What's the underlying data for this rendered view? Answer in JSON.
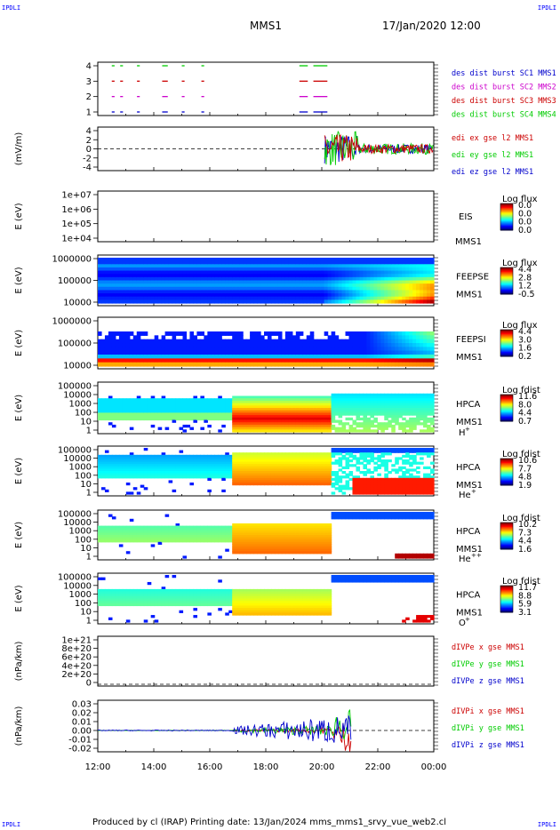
{
  "corners": {
    "tl": "IPDLI",
    "tr": "IPDLI",
    "bl": "IPDLI",
    "br": "IPDLI"
  },
  "header": {
    "mission": "MMS1",
    "datetime": "17/Jan/2020 12:00"
  },
  "footer": {
    "text": "Produced by cl (IRAP)   Printing date: 13/Jan/2024   mms_mms1_srvy_vue_web2.cl"
  },
  "time_axis": {
    "ticks": [
      "12:00",
      "14:00",
      "16:00",
      "18:00",
      "20:00",
      "22:00",
      "00:00"
    ]
  },
  "chart_data": [
    {
      "type": "scatter",
      "panel": "burst-availability",
      "ylim": [
        0.5,
        4.5
      ],
      "yticks": [
        "1",
        "2",
        "3",
        "4"
      ],
      "legend": [
        {
          "text": "des dist burst SC1 MMS1",
          "color": "#0000cc"
        },
        {
          "text": "des dist burst SC2 MMS2",
          "color": "#cc00cc"
        },
        {
          "text": "des dist burst SC3 MMS3",
          "color": "#cc0000"
        },
        {
          "text": "des dist burst SC4 MMS4",
          "color": "#00cc00"
        }
      ],
      "intervals_hours": [
        [
          12.5,
          12.6
        ],
        [
          12.8,
          12.9
        ],
        [
          13.4,
          13.5
        ],
        [
          14.3,
          14.5
        ],
        [
          15.0,
          15.1
        ],
        [
          15.7,
          15.8
        ],
        [
          19.2,
          19.5
        ],
        [
          19.7,
          20.2
        ]
      ]
    },
    {
      "type": "line",
      "panel": "edi-efield",
      "ylabel": "(mV/m)",
      "ylim": [
        -5,
        5
      ],
      "yticks": [
        "4",
        "2",
        "0",
        "-2",
        "-4"
      ],
      "legend": [
        {
          "text": "edi ex gse l2 MMS1",
          "color": "#cc0000"
        },
        {
          "text": "edi ey gse l2 MMS1",
          "color": "#00cc00"
        },
        {
          "text": "edi ez gse l2 MMS1",
          "color": "#0000cc"
        }
      ]
    },
    {
      "type": "heatmap",
      "panel": "eis",
      "ylabel": "E (eV)",
      "scale": "log",
      "yticks": [
        "1e+07",
        "1e+06",
        "1e+05",
        "1e+04"
      ],
      "labels": [
        "EIS",
        "MMS1"
      ],
      "overlay": "extof_proton tof",
      "colorbar": {
        "title": "Log flux",
        "ticks": [
          "0.0",
          "0.0",
          "0.0",
          "0.0"
        ]
      }
    },
    {
      "type": "heatmap",
      "panel": "feeps-electron",
      "ylabel": "E (eV)",
      "scale": "log",
      "yticks": [
        "1000000",
        "100000",
        "10000"
      ],
      "labels": [
        "FEEPSE",
        "MMS1"
      ],
      "colorbar": {
        "title": "Log flux",
        "ticks": [
          "4.4",
          "2.8",
          "1.2",
          "-0.5"
        ]
      }
    },
    {
      "type": "heatmap",
      "panel": "feeps-ion",
      "ylabel": "E (eV)",
      "scale": "log",
      "yticks": [
        "1000000",
        "100000",
        "10000"
      ],
      "labels": [
        "FEEPSI",
        "MMS1"
      ],
      "colorbar": {
        "title": "Log flux",
        "ticks": [
          "4.4",
          "3.0",
          "1.6",
          "0.2"
        ]
      }
    },
    {
      "type": "heatmap",
      "panel": "hpca-h",
      "ylabel": "E (eV)",
      "scale": "log",
      "yticks": [
        "100000",
        "10000",
        "1000",
        "100",
        "10",
        "1"
      ],
      "labels": [
        "HPCA",
        "MMS1"
      ],
      "species": "H",
      "charge": "+",
      "colorbar": {
        "title": "Log fdist",
        "ticks": [
          "11.6",
          "8.0",
          "4.4",
          "0.7"
        ]
      }
    },
    {
      "type": "heatmap",
      "panel": "hpca-he1",
      "ylabel": "E (eV)",
      "scale": "log",
      "yticks": [
        "100000",
        "10000",
        "1000",
        "100",
        "10",
        "1"
      ],
      "labels": [
        "HPCA",
        "MMS1"
      ],
      "species": "He",
      "charge": "+",
      "colorbar": {
        "title": "Log fdist",
        "ticks": [
          "10.6",
          "7.7",
          "4.8",
          "1.9"
        ]
      }
    },
    {
      "type": "heatmap",
      "panel": "hpca-he2",
      "ylabel": "E (eV)",
      "scale": "log",
      "yticks": [
        "100000",
        "10000",
        "1000",
        "100",
        "10",
        "1"
      ],
      "labels": [
        "HPCA",
        "MMS1"
      ],
      "species": "He",
      "charge": "++",
      "colorbar": {
        "title": "Log fdist",
        "ticks": [
          "10.2",
          "7.3",
          "4.4",
          "1.6"
        ]
      }
    },
    {
      "type": "heatmap",
      "panel": "hpca-o",
      "ylabel": "E (eV)",
      "scale": "log",
      "yticks": [
        "100000",
        "10000",
        "1000",
        "100",
        "10",
        "1"
      ],
      "labels": [
        "HPCA",
        "MMS1"
      ],
      "species": "O",
      "charge": "+",
      "colorbar": {
        "title": "Log fdist",
        "ticks": [
          "11.7",
          "8.8",
          "5.9",
          "3.1"
        ]
      }
    },
    {
      "type": "line",
      "panel": "divpe",
      "ylabel": "(nPa/km)",
      "ylim": [
        0,
        1.1e+21
      ],
      "yticks": [
        "1e+21",
        "8e+20",
        "6e+20",
        "4e+20",
        "2e+20",
        "0"
      ],
      "legend": [
        {
          "text": "dIVPe x gse MMS1",
          "color": "#cc0000"
        },
        {
          "text": "dIVPe y gse MMS1",
          "color": "#00cc00"
        },
        {
          "text": "dIVPe z gse MMS1",
          "color": "#0000cc"
        }
      ]
    },
    {
      "type": "line",
      "panel": "divpi",
      "ylabel": "(nPa/km)",
      "ylim": [
        -0.02,
        0.03
      ],
      "yticks": [
        "0.03",
        "0.02",
        "0.01",
        "0.00",
        "-0.01",
        "-0.02"
      ],
      "legend": [
        {
          "text": "dIVPi x gse MMS1",
          "color": "#cc0000"
        },
        {
          "text": "dIVPi y gse MMS1",
          "color": "#00cc00"
        },
        {
          "text": "dIVPi z gse MMS1",
          "color": "#0000cc"
        }
      ]
    }
  ]
}
